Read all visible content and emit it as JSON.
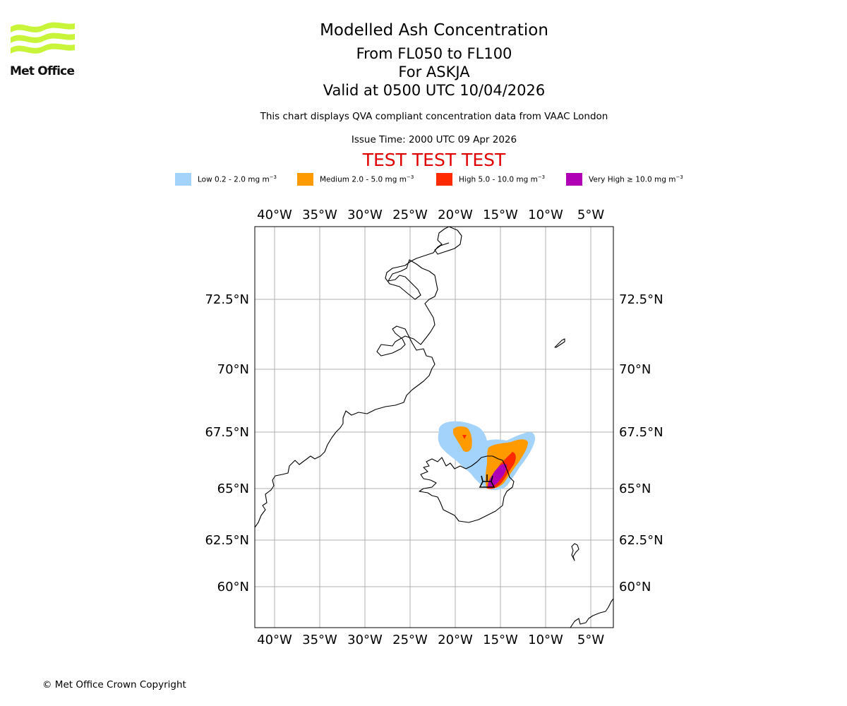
{
  "branding": {
    "logo_text": "Met Office"
  },
  "title": {
    "main": "Modelled Ash Concentration",
    "levels": "From FL050 to FL100",
    "volcano": "For ASKJA",
    "valid": "Valid at 0500 UTC 10/04/2026"
  },
  "subtitle": "This chart displays QVA compliant concentration data from VAAC London",
  "issue_time": "Issue Time: 2000 UTC 09 Apr 2026",
  "test_banner": "TEST TEST TEST",
  "legend": [
    {
      "label": "Low 0.2 - 2.0 mg m",
      "exp": "−3",
      "color": "#a3d2fa"
    },
    {
      "label": "Medium 2.0 - 5.0 mg m",
      "exp": "−3",
      "color": "#ff9a00"
    },
    {
      "label": "High 5.0 - 10.0 mg m",
      "exp": "−3",
      "color": "#ff2a00"
    },
    {
      "label": "Very High  ≥  10.0 mg m",
      "exp": "−3",
      "color": "#b000b5"
    }
  ],
  "map": {
    "lon_labels": [
      "40°W",
      "35°W",
      "30°W",
      "25°W",
      "20°W",
      "15°W",
      "10°W",
      "5°W"
    ],
    "lat_labels": [
      "72.5°N",
      "70°N",
      "67.5°N",
      "65°N",
      "62.5°N",
      "60°N"
    ],
    "gridline_color": "#b0b0b0"
  },
  "copyright": "© Met Office Crown Copyright"
}
